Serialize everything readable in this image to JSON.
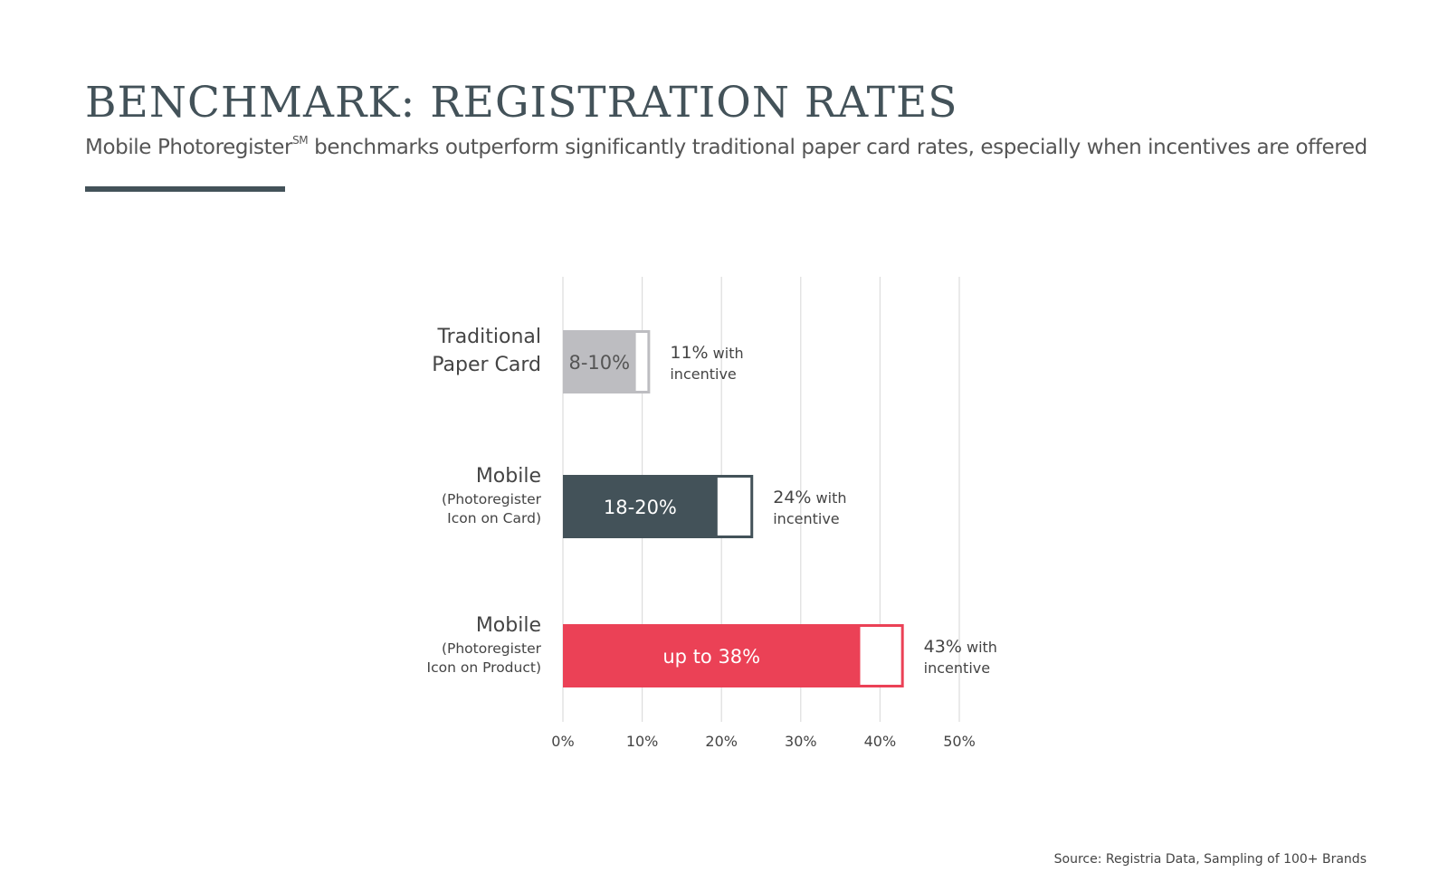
{
  "header": {
    "title": "BENCHMARK: REGISTRATION RATES",
    "subtitle_main": "Mobile Photoregister",
    "subtitle_sup": "SM",
    "subtitle_rest": " benchmarks outperform significantly traditional paper card rates, especially when incentives are offered"
  },
  "footer": {
    "source": "Source:  Registria Data, Sampling of 100+ Brands"
  },
  "chart_data": {
    "type": "bar",
    "orientation": "horizontal",
    "xlim": [
      0,
      50
    ],
    "x_ticks": [
      "0%",
      "10%",
      "20%",
      "30%",
      "40%",
      "50%"
    ],
    "grid": true,
    "categories": [
      {
        "label_main": "Traditional",
        "label_lines": [
          "Paper Card"
        ],
        "main_size": "large"
      },
      {
        "label_main": "Mobile",
        "label_lines": [
          "(Photoregister",
          "Icon on Card)"
        ],
        "main_size": "large"
      },
      {
        "label_main": "Mobile",
        "label_lines": [
          "(Photoregister",
          "Icon on Product)"
        ],
        "main_size": "large"
      }
    ],
    "series": [
      {
        "values": [
          9.2,
          19.5,
          37.5
        ],
        "labels": [
          "8-10%",
          "18-20%",
          "up to 38%"
        ]
      },
      {
        "values": [
          11,
          24,
          43
        ],
        "notes_pct": [
          "11%",
          "24%",
          "43%"
        ],
        "notes_text": [
          "with",
          "with",
          "with"
        ],
        "notes_line2": [
          "incentive",
          "incentive",
          "incentive"
        ]
      }
    ],
    "colors": {
      "fills": [
        "#bdbdc1",
        "#435259",
        "#eb4156"
      ],
      "outlines": [
        "#bdbdc1",
        "#435259",
        "#eb4156"
      ],
      "label_colors": [
        "#555555",
        "#ffffff",
        "#ffffff"
      ],
      "grid": "#dddddd"
    }
  }
}
